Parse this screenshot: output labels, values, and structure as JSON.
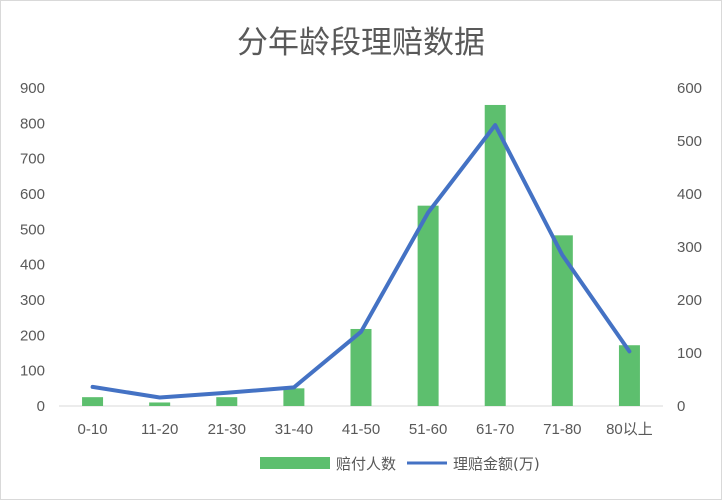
{
  "chart_data": {
    "type": "bar",
    "title": "分年龄段理赔数据",
    "categories": [
      "0-10",
      "11-20",
      "21-30",
      "31-40",
      "41-50",
      "51-60",
      "61-70",
      "71-80",
      "80以上"
    ],
    "series": [
      {
        "name": "赔付人数",
        "type": "bar",
        "axis": "left",
        "color": "#5dbf6e",
        "values": [
          25,
          10,
          25,
          50,
          218,
          567,
          852,
          483,
          172
        ]
      },
      {
        "name": "理赔金额(万)",
        "type": "line",
        "axis": "right",
        "color": "#4472c4",
        "values": [
          36,
          16,
          25,
          35,
          140,
          365,
          530,
          285,
          103
        ]
      }
    ],
    "y_left": {
      "min": 0,
      "max": 900,
      "ticks": [
        "0",
        "100",
        "200",
        "300",
        "400",
        "500",
        "600",
        "700",
        "800",
        "900"
      ]
    },
    "y_right": {
      "min": 0,
      "max": 600,
      "ticks": [
        "0",
        "100",
        "200",
        "300",
        "400",
        "500",
        "600"
      ]
    },
    "grid": false,
    "legend_position": "bottom"
  }
}
